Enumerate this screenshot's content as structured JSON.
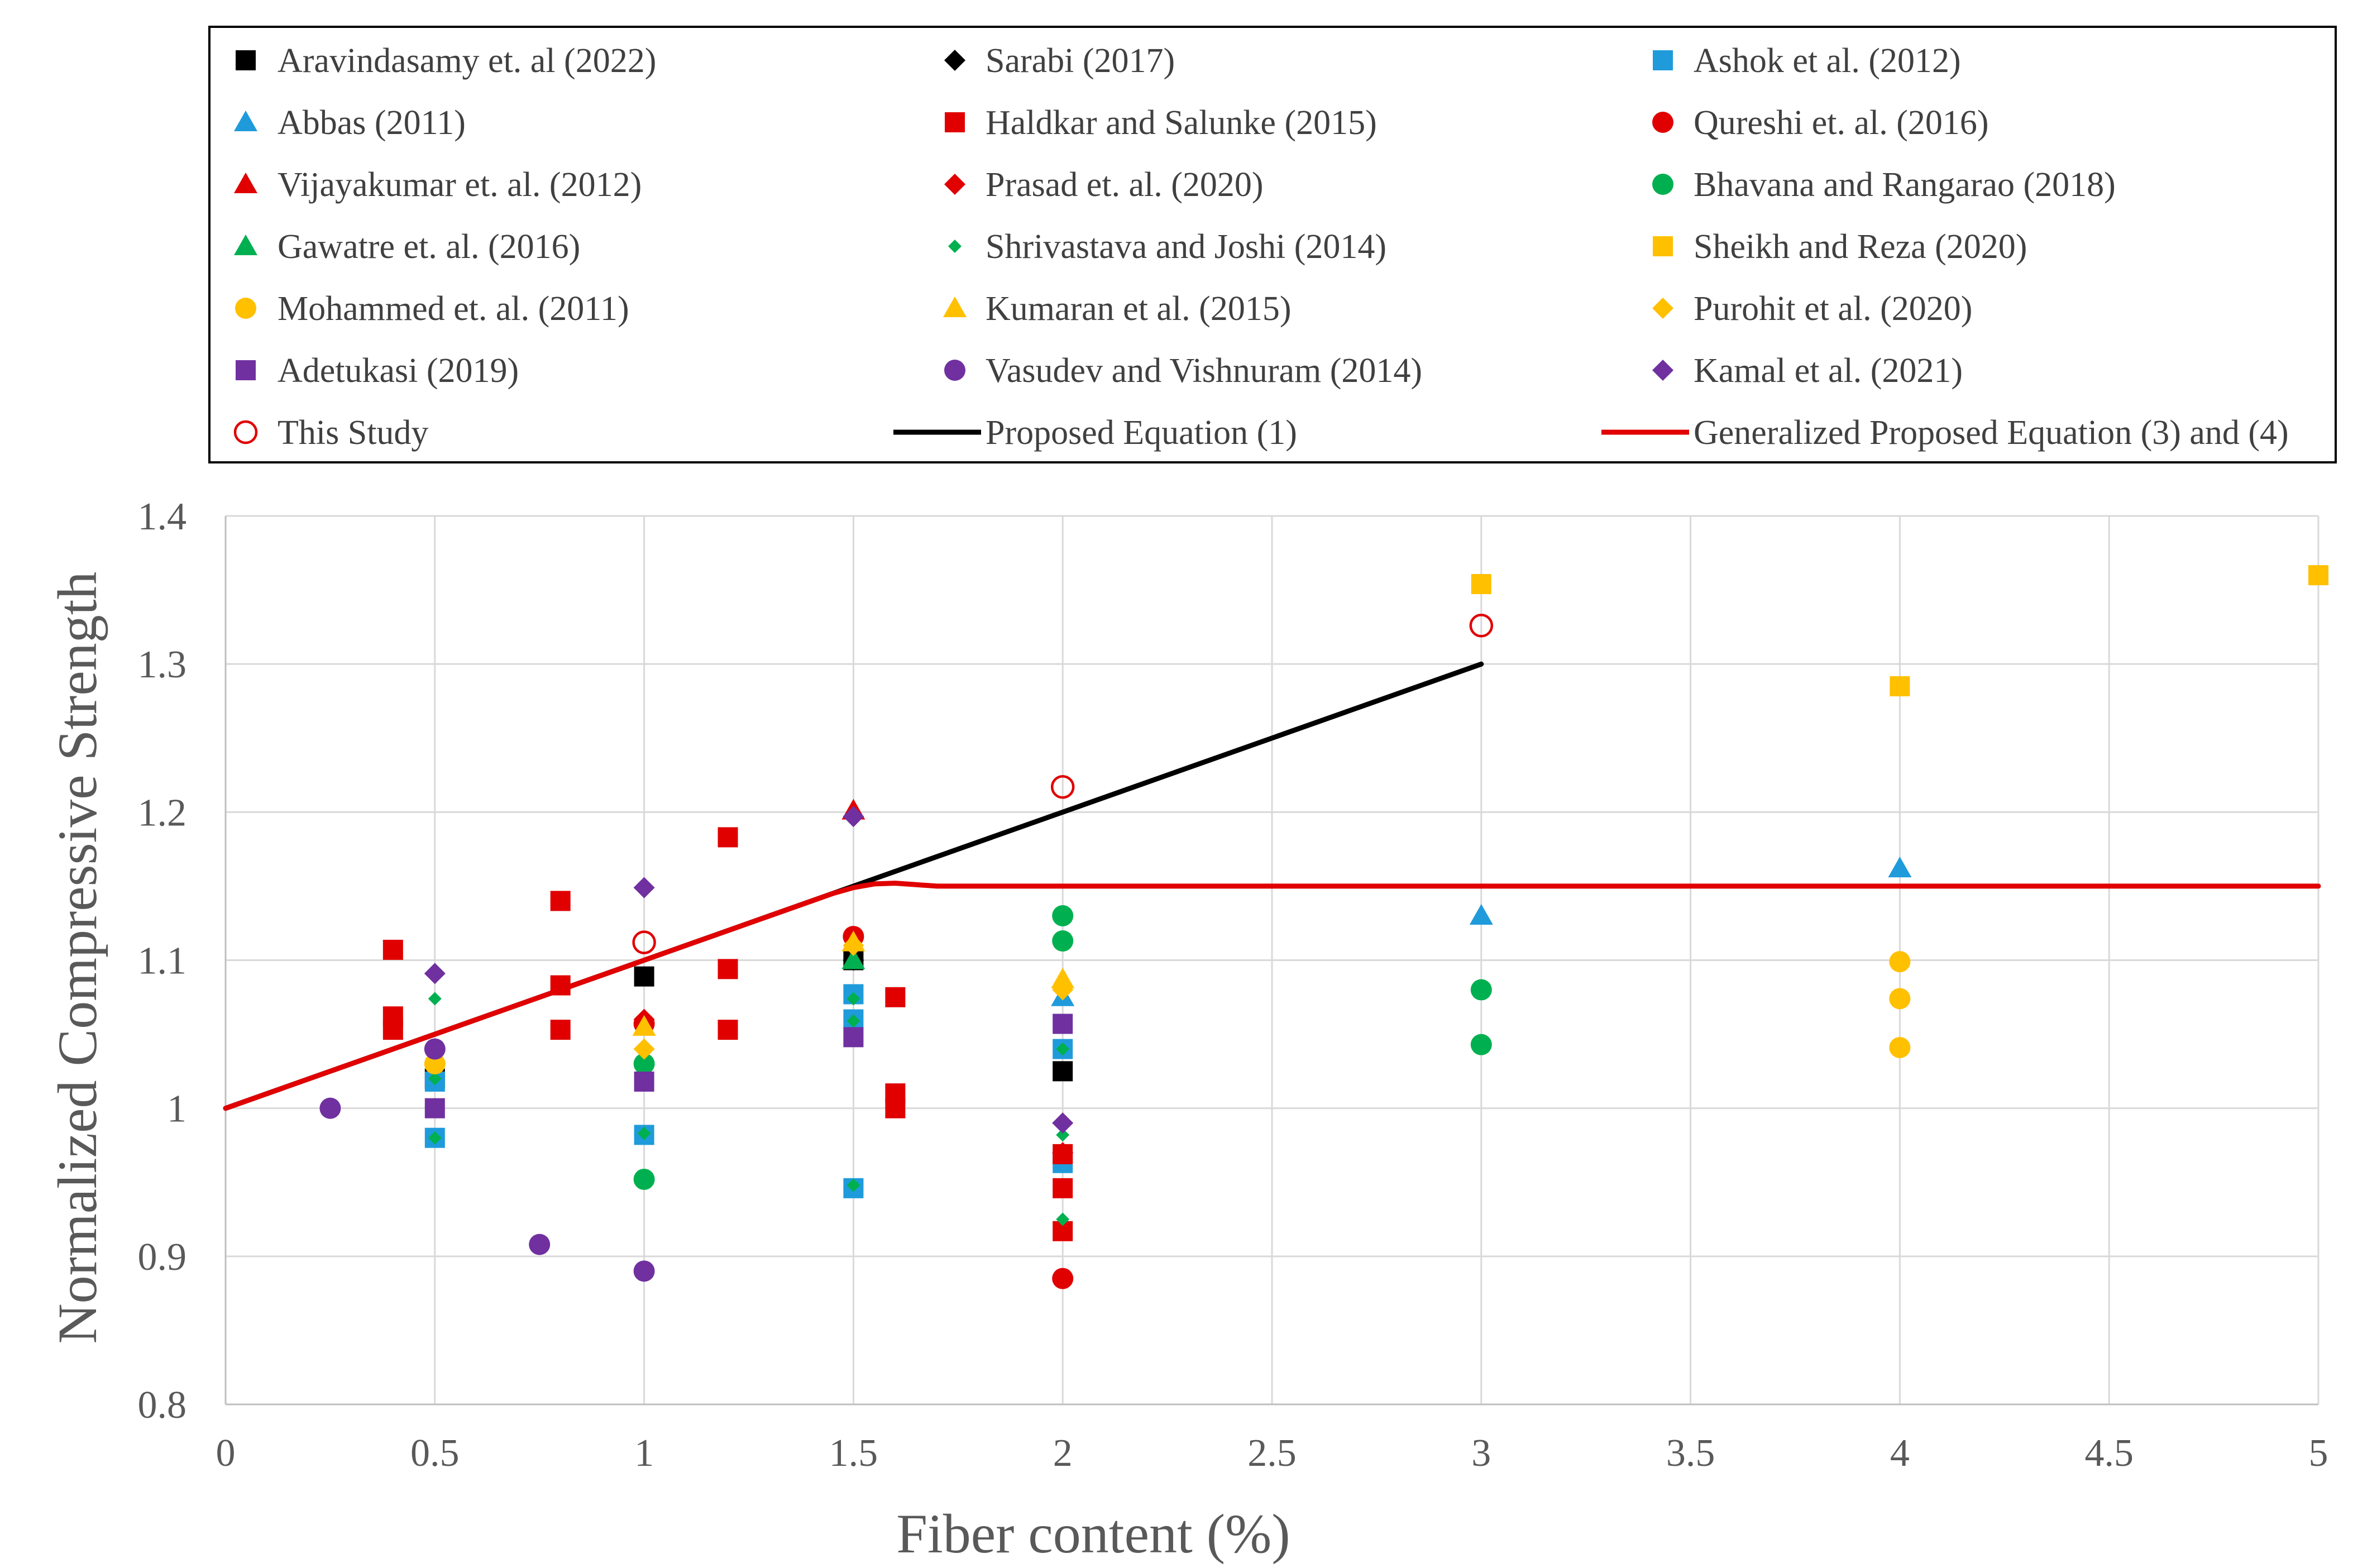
{
  "chart_data": {
    "type": "scatter",
    "title": "",
    "xlabel": "Fiber content (%)",
    "ylabel": "Normalized Compressive Strength",
    "xlim": [
      0,
      5
    ],
    "ylim": [
      0.8,
      1.4
    ],
    "xticks": [
      0,
      0.5,
      1,
      1.5,
      2,
      2.5,
      3,
      3.5,
      4,
      4.5,
      5
    ],
    "xtick_labels": [
      "0",
      "0.5",
      "1",
      "1.5",
      "2",
      "2.5",
      "3",
      "3.5",
      "4",
      "4.5",
      "5"
    ],
    "yticks": [
      0.8,
      0.9,
      1.0,
      1.1,
      1.2,
      1.3,
      1.4
    ],
    "ytick_labels": [
      "0.8",
      "0.9",
      "1",
      "1.1",
      "1.2",
      "1.3",
      "1.4"
    ],
    "grid": true,
    "legend_position": "top",
    "series": [
      {
        "name": "Aravindasamy et. al  (2022)",
        "marker": "square",
        "color": "#000000",
        "filled": true,
        "points": [
          [
            0.5,
            1.02
          ],
          [
            1,
            1.089
          ],
          [
            1.5,
            1.1
          ],
          [
            2,
            1.025
          ]
        ]
      },
      {
        "name": "Sarabi (2017)",
        "marker": "diamond",
        "color": "#000000",
        "filled": true,
        "points": [
          [
            1.5,
            1.1
          ]
        ]
      },
      {
        "name": "Ashok et al. (2012)",
        "marker": "square",
        "color": "#1F9BDB",
        "filled": true,
        "points": [
          [
            0.5,
            0.98
          ],
          [
            0.5,
            1.018
          ],
          [
            1,
            0.982
          ],
          [
            1.5,
            0.946
          ],
          [
            1.5,
            1.06
          ],
          [
            1.5,
            1.077
          ],
          [
            2,
            0.963
          ],
          [
            2,
            1.04
          ]
        ]
      },
      {
        "name": "Abbas (2011)",
        "marker": "triangle",
        "color": "#1F9BDB",
        "filled": true,
        "points": [
          [
            2,
            1.075
          ],
          [
            3,
            1.13
          ],
          [
            4,
            1.162
          ]
        ]
      },
      {
        "name": "Haldkar and Salunke (2015)",
        "marker": "square",
        "color": "#E00000",
        "filled": true,
        "points": [
          [
            0.4,
            1.107
          ],
          [
            0.4,
            1.062
          ],
          [
            0.4,
            1.053
          ],
          [
            0.8,
            1.14
          ],
          [
            0.8,
            1.083
          ],
          [
            0.8,
            1.053
          ],
          [
            1.2,
            1.183
          ],
          [
            1.2,
            1.094
          ],
          [
            1.2,
            1.053
          ],
          [
            1.6,
            1.075
          ],
          [
            1.6,
            1.01
          ],
          [
            1.6,
            1.0
          ],
          [
            2,
            0.969
          ],
          [
            2,
            0.946
          ],
          [
            2,
            0.917
          ]
        ]
      },
      {
        "name": "Qureshi et. al.  (2016)",
        "marker": "circle",
        "color": "#E00000",
        "filled": true,
        "points": [
          [
            1,
            1.057
          ],
          [
            1.5,
            1.116
          ],
          [
            2,
            0.885
          ]
        ]
      },
      {
        "name": "Vijayakumar et. al.  (2012)",
        "marker": "triangle",
        "color": "#E00000",
        "filled": true,
        "points": [
          [
            1.5,
            1.201
          ]
        ]
      },
      {
        "name": " Prasad et. al.  (2020)",
        "marker": "diamond",
        "color": "#E00000",
        "filled": true,
        "points": [
          [
            1,
            1.06
          ],
          [
            2,
            0.97
          ]
        ]
      },
      {
        "name": "Bhavana and Rangarao  (2018)",
        "marker": "circle",
        "color": "#00B050",
        "filled": true,
        "points": [
          [
            1,
            0.952
          ],
          [
            1,
            1.03
          ],
          [
            2,
            1.13
          ],
          [
            2,
            1.113
          ],
          [
            3,
            1.08
          ],
          [
            3,
            1.043
          ]
        ]
      },
      {
        "name": " Gawatre et. al.  (2016)",
        "marker": "triangle",
        "color": "#00B050",
        "filled": true,
        "points": [
          [
            1.5,
            1.1
          ]
        ]
      },
      {
        "name": "Shrivastava and Joshi  (2014)",
        "marker": "smalldiamond",
        "color": "#00B050",
        "filled": true,
        "points": [
          [
            0.5,
            1.074
          ],
          [
            0.5,
            1.02
          ],
          [
            0.5,
            0.98
          ],
          [
            1,
            1.038
          ],
          [
            1,
            0.983
          ],
          [
            1.5,
            1.074
          ],
          [
            1.5,
            1.059
          ],
          [
            1.5,
            0.948
          ],
          [
            2,
            1.04
          ],
          [
            2,
            0.982
          ],
          [
            2,
            0.925
          ]
        ]
      },
      {
        "name": "Sheikh and Reza  (2020)",
        "marker": "square",
        "color": "#FFC000",
        "filled": true,
        "points": [
          [
            3,
            1.354
          ],
          [
            4,
            1.285
          ],
          [
            5,
            1.36
          ]
        ]
      },
      {
        "name": "Mohammed et. al.  (2011)",
        "marker": "circle",
        "color": "#FFC000",
        "filled": true,
        "points": [
          [
            0.5,
            1.03
          ],
          [
            4,
            1.099
          ],
          [
            4,
            1.074
          ],
          [
            4,
            1.041
          ]
        ]
      },
      {
        "name": "Kumaran et al. (2015)",
        "marker": "triangle",
        "color": "#FFC000",
        "filled": true,
        "points": [
          [
            1,
            1.055
          ],
          [
            1.5,
            1.112
          ],
          [
            2,
            1.087
          ]
        ]
      },
      {
        "name": "Purohit et al. (2020)",
        "marker": "diamond",
        "color": "#FFC000",
        "filled": true,
        "points": [
          [
            1,
            1.04
          ],
          [
            1.5,
            1.11
          ],
          [
            2,
            1.08
          ]
        ]
      },
      {
        "name": "Adetukasi  (2019)",
        "marker": "square",
        "color": "#7030A0",
        "filled": true,
        "points": [
          [
            0.5,
            1.0
          ],
          [
            1,
            1.018
          ],
          [
            1.5,
            1.048
          ],
          [
            2,
            1.057
          ]
        ]
      },
      {
        "name": "Vasudev and Vishnuram (2014)",
        "marker": "circle",
        "color": "#7030A0",
        "filled": true,
        "points": [
          [
            0.25,
            1.0
          ],
          [
            0.5,
            1.04
          ],
          [
            0.75,
            0.908
          ],
          [
            1,
            0.89
          ]
        ]
      },
      {
        "name": "Kamal et al.  (2021)",
        "marker": "diamond",
        "color": "#7030A0",
        "filled": true,
        "points": [
          [
            0.5,
            1.091
          ],
          [
            1,
            1.149
          ],
          [
            1.5,
            1.197
          ],
          [
            2,
            0.99
          ]
        ]
      },
      {
        "name": "This Study",
        "marker": "circle",
        "color": "#E00000",
        "filled": false,
        "points": [
          [
            1,
            1.112
          ],
          [
            2,
            1.217
          ],
          [
            3,
            1.326
          ]
        ]
      }
    ],
    "lines": [
      {
        "name": "Proposed Equation (1)",
        "color": "#000000",
        "x": [
          0,
          3
        ],
        "y": [
          1.0,
          1.3
        ]
      },
      {
        "name": "Generalized Proposed Equation (3) and (4)",
        "color": "#E00000",
        "x": [
          0,
          1.35,
          1.45,
          1.5,
          1.55,
          1.6,
          1.65,
          1.7,
          1.8,
          5
        ],
        "y": [
          1.0,
          1.135,
          1.145,
          1.149,
          1.1515,
          1.152,
          1.151,
          1.15,
          1.15,
          1.15
        ]
      }
    ]
  }
}
